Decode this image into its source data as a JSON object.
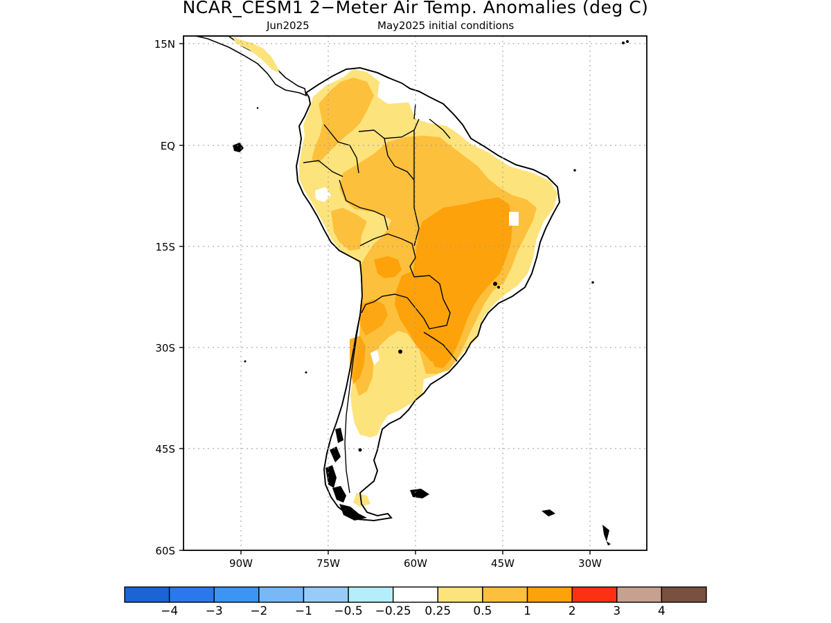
{
  "title": "NCAR_CESM1 2−Meter Air Temp. Anomalies (deg C)",
  "subtitle_left": "Jun2025",
  "subtitle_right": "May2025 initial conditions",
  "lat_ticks": [
    "15N",
    "EQ",
    "15S",
    "30S",
    "45S",
    "60S"
  ],
  "lon_ticks": [
    "90W",
    "75W",
    "60W",
    "45W",
    "30W"
  ],
  "colorbar": {
    "colors": [
      "#1a64d6",
      "#2a78ec",
      "#3b95f2",
      "#78b8f7",
      "#98ccf8",
      "#b4eefa",
      "#ffffff",
      "#fde37c",
      "#fdc03c",
      "#fda20a",
      "#fc3012",
      "#c8a090",
      "#7a5040"
    ],
    "labels": [
      "−4",
      "−3",
      "−2",
      "−1",
      "−0.5",
      "−0.25",
      "0.25",
      "0.5",
      "1",
      "2",
      "3",
      "4"
    ]
  },
  "map": {
    "land_color": "#ffffff",
    "anomaly_colors": {
      "light": "#fde37c",
      "medium": "#fdc03c",
      "strong": "#fda20a"
    }
  }
}
